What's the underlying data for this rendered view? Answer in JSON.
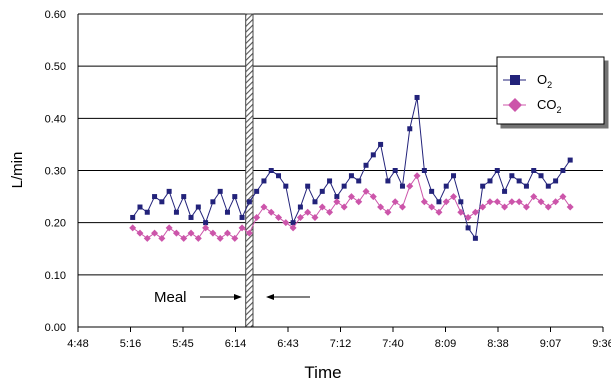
{
  "chart_data": {
    "type": "scatter",
    "title": "",
    "xlabel": "Time",
    "ylabel": "L/min",
    "x_unit": "minutes since midnight",
    "xlim": [
      288,
      576
    ],
    "ylim": [
      0,
      0.6
    ],
    "x_ticks": [
      "4:48",
      "5:16",
      "5:45",
      "6:14",
      "6:43",
      "7:12",
      "7:40",
      "8:09",
      "8:38",
      "9:07",
      "9:36"
    ],
    "y_ticks": [
      "0.00",
      "0.10",
      "0.20",
      "0.30",
      "0.40",
      "0.50",
      "0.60"
    ],
    "grid": "horizontal",
    "legend": "right",
    "series": [
      {
        "name": "O",
        "subscript": "2",
        "color": "#22227a",
        "marker": "square",
        "x": [
          318,
          322,
          326,
          330,
          334,
          338,
          342,
          346,
          350,
          354,
          358,
          362,
          366,
          370,
          374,
          378,
          382,
          386,
          390,
          394,
          398,
          402,
          406,
          410,
          414,
          418,
          422,
          426,
          430,
          434,
          438,
          442,
          446,
          450,
          454,
          458,
          462,
          466,
          470,
          474,
          478,
          482,
          486,
          490,
          494,
          498,
          502,
          506,
          510,
          514,
          518,
          522,
          526,
          530,
          534,
          538,
          542,
          546,
          550,
          554,
          558
        ],
        "y": [
          0.21,
          0.23,
          0.22,
          0.25,
          0.24,
          0.26,
          0.22,
          0.25,
          0.21,
          0.23,
          0.2,
          0.24,
          0.26,
          0.22,
          0.25,
          0.21,
          0.24,
          0.26,
          0.28,
          0.3,
          0.29,
          0.27,
          0.2,
          0.23,
          0.27,
          0.24,
          0.26,
          0.28,
          0.25,
          0.27,
          0.29,
          0.28,
          0.31,
          0.33,
          0.35,
          0.28,
          0.3,
          0.27,
          0.38,
          0.44,
          0.3,
          0.26,
          0.24,
          0.27,
          0.29,
          0.24,
          0.19,
          0.17,
          0.27,
          0.28,
          0.3,
          0.26,
          0.29,
          0.28,
          0.27,
          0.3,
          0.29,
          0.27,
          0.28,
          0.3,
          0.32
        ]
      },
      {
        "name": "CO",
        "subscript": "2",
        "color": "#cc55aa",
        "marker": "diamond",
        "x": [
          318,
          322,
          326,
          330,
          334,
          338,
          342,
          346,
          350,
          354,
          358,
          362,
          366,
          370,
          374,
          378,
          382,
          386,
          390,
          394,
          398,
          402,
          406,
          410,
          414,
          418,
          422,
          426,
          430,
          434,
          438,
          442,
          446,
          450,
          454,
          458,
          462,
          466,
          470,
          474,
          478,
          482,
          486,
          490,
          494,
          498,
          502,
          506,
          510,
          514,
          518,
          522,
          526,
          530,
          534,
          538,
          542,
          546,
          550,
          554,
          558
        ],
        "y": [
          0.19,
          0.18,
          0.17,
          0.18,
          0.17,
          0.19,
          0.18,
          0.17,
          0.18,
          0.17,
          0.19,
          0.18,
          0.17,
          0.18,
          0.17,
          0.19,
          0.18,
          0.21,
          0.23,
          0.22,
          0.21,
          0.2,
          0.19,
          0.21,
          0.22,
          0.21,
          0.23,
          0.22,
          0.24,
          0.23,
          0.25,
          0.24,
          0.26,
          0.25,
          0.23,
          0.22,
          0.24,
          0.23,
          0.27,
          0.29,
          0.24,
          0.23,
          0.22,
          0.24,
          0.25,
          0.22,
          0.21,
          0.22,
          0.23,
          0.24,
          0.24,
          0.23,
          0.24,
          0.24,
          0.23,
          0.25,
          0.24,
          0.23,
          0.24,
          0.25,
          0.23
        ]
      }
    ],
    "annotation": {
      "text": "Meal",
      "band_x": [
        380,
        384
      ]
    }
  }
}
